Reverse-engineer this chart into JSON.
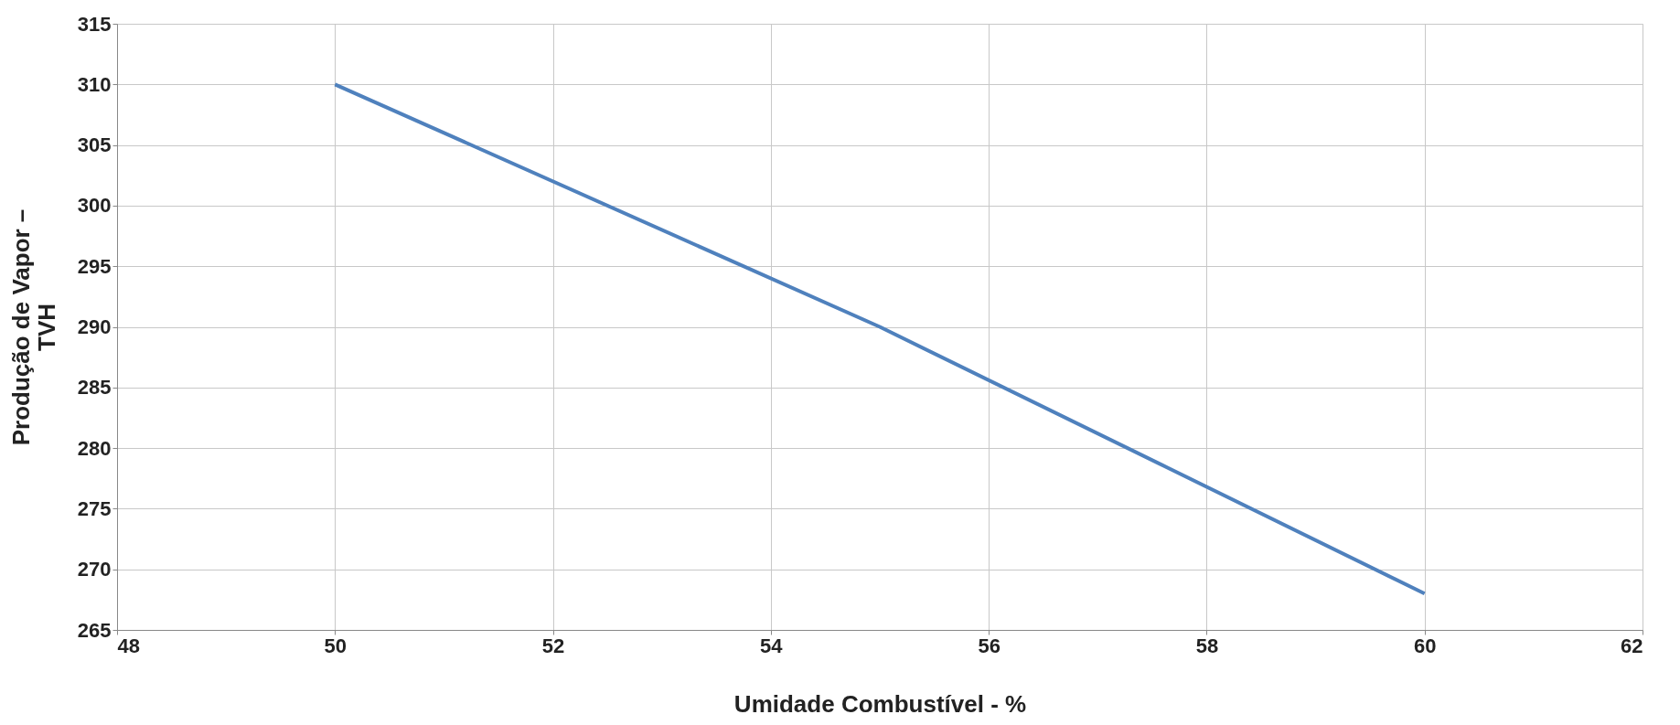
{
  "chart_data": {
    "type": "line",
    "xlabel": "Umidade Combustível - %",
    "ylabel": "Produção de Vapor – TVH",
    "x": [
      50,
      55,
      60
    ],
    "series": [
      {
        "color": "#4f81bd",
        "values": [
          310,
          290,
          268
        ]
      }
    ],
    "xlim": [
      48,
      62
    ],
    "xticks": [
      48,
      50,
      52,
      54,
      56,
      58,
      60,
      62
    ],
    "ylim": [
      265,
      315
    ],
    "yticks": [
      265,
      270,
      275,
      280,
      285,
      290,
      295,
      300,
      305,
      310,
      315
    ],
    "grid": true,
    "marker": "none",
    "line_style": "solid"
  }
}
